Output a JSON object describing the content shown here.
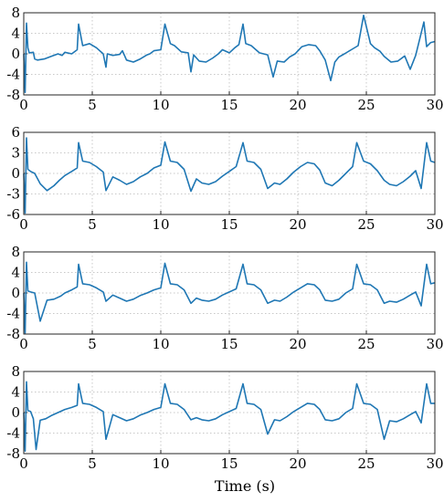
{
  "figure": {
    "xlabel": "Time (s)",
    "line_color": "#1f77b4",
    "grid": "dotted"
  },
  "chart_data": [
    {
      "type": "line",
      "xlabel": "",
      "ylabel": "",
      "xlim": [
        0,
        30
      ],
      "ylim": [
        -8,
        8
      ],
      "xticks": [
        "0",
        "5",
        "10",
        "15",
        "20",
        "25",
        "30"
      ],
      "yticks": [
        "8",
        "4",
        "0",
        "-4",
        "-8"
      ],
      "grid": true,
      "series": [
        {
          "color": "#1f77b4",
          "x": [
            0,
            0.1,
            0.2,
            0.3,
            0.4,
            0.7,
            0.8,
            1.0,
            1.5,
            2.0,
            2.5,
            2.8,
            3.0,
            3.5,
            3.9,
            4.0,
            4.3,
            4.8,
            5.3,
            5.8,
            6.0,
            6.1,
            6.5,
            7.0,
            7.2,
            7.5,
            8.0,
            8.5,
            9.0,
            9.2,
            9.5,
            10.0,
            10.3,
            10.7,
            11.0,
            11.5,
            12.0,
            12.2,
            12.4,
            12.8,
            13.3,
            13.8,
            14.2,
            14.5,
            15.0,
            15.4,
            15.7,
            16.0,
            16.2,
            16.6,
            17.2,
            17.8,
            18.2,
            18.5,
            19.0,
            19.4,
            19.8,
            20.3,
            20.8,
            21.3,
            21.6,
            22.0,
            22.4,
            22.7,
            23.0,
            23.4,
            23.9,
            24.4,
            24.8,
            25.3,
            25.6,
            26.0,
            26.3,
            26.8,
            27.3,
            27.8,
            28.2,
            28.6,
            29.2,
            29.4,
            29.7,
            30.0
          ],
          "y": [
            0,
            -7.5,
            6,
            1.2,
            0.2,
            0.3,
            -1.0,
            -1.2,
            -1.0,
            -0.5,
            0,
            -0.3,
            0.3,
            0,
            0.8,
            5.8,
            1.6,
            2.0,
            1.2,
            0,
            -2.6,
            0,
            -0.3,
            -0.1,
            0.6,
            -1.2,
            -1.6,
            -1.0,
            -0.2,
            0,
            0.6,
            0.8,
            5.8,
            2.0,
            1.6,
            0.4,
            0.2,
            -3.5,
            -0.2,
            -1.4,
            -1.6,
            -0.8,
            0,
            0.8,
            0.2,
            1.2,
            1.8,
            5.8,
            2.0,
            1.6,
            0.2,
            -0.2,
            -4.5,
            -1.4,
            -1.6,
            -0.6,
            0,
            1.4,
            1.8,
            1.6,
            0.6,
            -1.2,
            -5.2,
            -1.6,
            -0.6,
            0,
            0.8,
            1.6,
            7.5,
            2.0,
            1.2,
            0.5,
            -0.5,
            -1.6,
            -1.4,
            -0.4,
            -3.0,
            -0.3,
            6.2,
            1.4,
            2.2,
            2.4
          ]
        }
      ]
    },
    {
      "type": "line",
      "xlabel": "",
      "ylabel": "",
      "xlim": [
        0,
        30
      ],
      "ylim": [
        -6,
        6
      ],
      "xticks": [
        "0",
        "5",
        "10",
        "15",
        "20",
        "25",
        "30"
      ],
      "yticks": [
        "6",
        "3",
        "0",
        "-3",
        "-6"
      ],
      "grid": true,
      "series": [
        {
          "color": "#1f77b4",
          "x": [
            0,
            0.1,
            0.2,
            0.3,
            0.5,
            0.8,
            1.2,
            1.7,
            2.2,
            2.6,
            3.0,
            3.5,
            3.9,
            4.0,
            4.3,
            4.8,
            5.3,
            5.8,
            6.0,
            6.5,
            7.0,
            7.5,
            8.0,
            8.5,
            9.0,
            9.5,
            10.0,
            10.3,
            10.7,
            11.2,
            11.7,
            12.2,
            12.6,
            13.0,
            13.5,
            14.0,
            14.5,
            15.0,
            15.5,
            16.0,
            16.3,
            16.8,
            17.3,
            17.8,
            18.3,
            18.7,
            19.2,
            19.7,
            20.2,
            20.7,
            21.2,
            21.6,
            22.0,
            22.5,
            23.0,
            23.5,
            24.0,
            24.3,
            24.8,
            25.3,
            25.8,
            26.3,
            26.7,
            27.2,
            27.7,
            28.2,
            28.6,
            29.0,
            29.4,
            29.7,
            30.0
          ],
          "y": [
            0,
            -5.8,
            5.2,
            0.6,
            0.3,
            0,
            -1.5,
            -2.5,
            -1.8,
            -1.0,
            -0.3,
            0.3,
            0.8,
            4.5,
            1.8,
            1.6,
            1.0,
            0.2,
            -2.5,
            -0.5,
            -1.0,
            -1.6,
            -1.2,
            -0.5,
            0,
            0.8,
            1.2,
            4.6,
            1.8,
            1.6,
            0.6,
            -2.6,
            -0.8,
            -1.4,
            -1.6,
            -1.2,
            -0.4,
            0.3,
            1.0,
            4.5,
            1.8,
            1.6,
            0.6,
            -2.2,
            -1.4,
            -1.6,
            -0.8,
            0.2,
            1.0,
            1.6,
            1.4,
            0.5,
            -1.4,
            -1.8,
            -1.0,
            0,
            1.0,
            4.5,
            1.8,
            1.4,
            0.4,
            -1.0,
            -1.6,
            -1.8,
            -1.2,
            -0.4,
            0.4,
            -2.2,
            4.5,
            1.8,
            1.6
          ]
        }
      ]
    },
    {
      "type": "line",
      "xlabel": "",
      "ylabel": "",
      "xlim": [
        0,
        30
      ],
      "ylim": [
        -8,
        8
      ],
      "xticks": [
        "0",
        "5",
        "10",
        "15",
        "20",
        "25",
        "30"
      ],
      "yticks": [
        "8",
        "4",
        "0",
        "-4",
        "-8"
      ],
      "grid": true,
      "series": [
        {
          "color": "#1f77b4",
          "x": [
            0,
            0.1,
            0.2,
            0.3,
            0.5,
            0.8,
            1.2,
            1.7,
            2.2,
            2.7,
            3.0,
            3.5,
            3.9,
            4.0,
            4.3,
            4.8,
            5.3,
            5.8,
            6.0,
            6.5,
            7.0,
            7.5,
            8.0,
            8.5,
            9.0,
            9.5,
            10.0,
            10.3,
            10.7,
            11.2,
            11.7,
            12.2,
            12.6,
            13.0,
            13.5,
            14.0,
            14.5,
            15.0,
            15.5,
            16.0,
            16.3,
            16.8,
            17.3,
            17.8,
            18.3,
            18.7,
            19.2,
            19.7,
            20.2,
            20.7,
            21.2,
            21.6,
            22.0,
            22.5,
            23.0,
            23.5,
            24.0,
            24.3,
            24.8,
            25.3,
            25.8,
            26.3,
            26.7,
            27.2,
            27.7,
            28.2,
            28.6,
            29.0,
            29.4,
            29.7,
            30.0
          ],
          "y": [
            0,
            -7.8,
            6.0,
            0.4,
            0.2,
            0,
            -5.5,
            -1.4,
            -1.2,
            -0.6,
            0,
            0.6,
            1.2,
            5.6,
            1.8,
            1.6,
            1.0,
            0.2,
            -1.6,
            -0.4,
            -1.0,
            -1.6,
            -1.2,
            -0.5,
            0,
            0.6,
            1.0,
            5.8,
            1.8,
            1.6,
            0.6,
            -2.0,
            -1.0,
            -1.4,
            -1.6,
            -1.2,
            -0.4,
            0.2,
            0.8,
            5.6,
            1.8,
            1.6,
            0.6,
            -2.0,
            -1.4,
            -1.6,
            -0.8,
            0.2,
            1.0,
            1.8,
            1.6,
            0.6,
            -1.4,
            -1.6,
            -1.2,
            0,
            0.8,
            5.6,
            1.8,
            1.6,
            0.6,
            -2.0,
            -1.6,
            -1.8,
            -1.2,
            -0.4,
            0.2,
            -2.5,
            5.6,
            1.8,
            2.0
          ]
        }
      ]
    },
    {
      "type": "line",
      "xlabel": "",
      "ylabel": "",
      "xlim": [
        0,
        30
      ],
      "ylim": [
        -8,
        8
      ],
      "xticks": [
        "0",
        "5",
        "10",
        "15",
        "20",
        "25",
        "30"
      ],
      "yticks": [
        "8",
        "4",
        "0",
        "-4",
        "-8"
      ],
      "grid": true,
      "series": [
        {
          "color": "#1f77b4",
          "x": [
            0,
            0.1,
            0.2,
            0.3,
            0.5,
            0.7,
            0.9,
            1.2,
            1.6,
            2.0,
            2.5,
            3.0,
            3.5,
            3.9,
            4.0,
            4.3,
            4.8,
            5.3,
            5.8,
            6.0,
            6.5,
            7.0,
            7.5,
            8.0,
            8.5,
            9.0,
            9.5,
            10.0,
            10.3,
            10.7,
            11.2,
            11.7,
            12.2,
            12.6,
            13.0,
            13.5,
            14.0,
            14.5,
            15.0,
            15.5,
            16.0,
            16.3,
            16.8,
            17.3,
            17.8,
            18.3,
            18.7,
            19.2,
            19.7,
            20.2,
            20.7,
            21.2,
            21.6,
            22.0,
            22.5,
            23.0,
            23.5,
            24.0,
            24.3,
            24.8,
            25.3,
            25.8,
            26.3,
            26.7,
            27.2,
            27.7,
            28.2,
            28.6,
            29.0,
            29.4,
            29.7,
            30.0
          ],
          "y": [
            0,
            -7.5,
            6.0,
            0.4,
            0.2,
            -1.2,
            -7.2,
            -1.5,
            -1.2,
            -0.6,
            0,
            0.6,
            1.0,
            1.4,
            5.6,
            1.8,
            1.6,
            1.0,
            0.2,
            -5.2,
            -0.4,
            -1.0,
            -1.6,
            -1.2,
            -0.5,
            0,
            0.6,
            1.0,
            5.6,
            1.8,
            1.6,
            0.6,
            -1.4,
            -1.0,
            -1.4,
            -1.6,
            -1.2,
            -0.4,
            0.2,
            0.8,
            5.6,
            1.8,
            1.6,
            0.6,
            -4.2,
            -1.4,
            -1.6,
            -0.8,
            0.2,
            1.0,
            1.8,
            1.6,
            0.6,
            -1.4,
            -1.6,
            -1.2,
            0,
            0.8,
            5.6,
            1.8,
            1.6,
            0.6,
            -5.2,
            -1.6,
            -1.8,
            -1.2,
            -0.4,
            0.2,
            -2.0,
            5.6,
            1.8,
            1.8
          ]
        }
      ]
    }
  ]
}
